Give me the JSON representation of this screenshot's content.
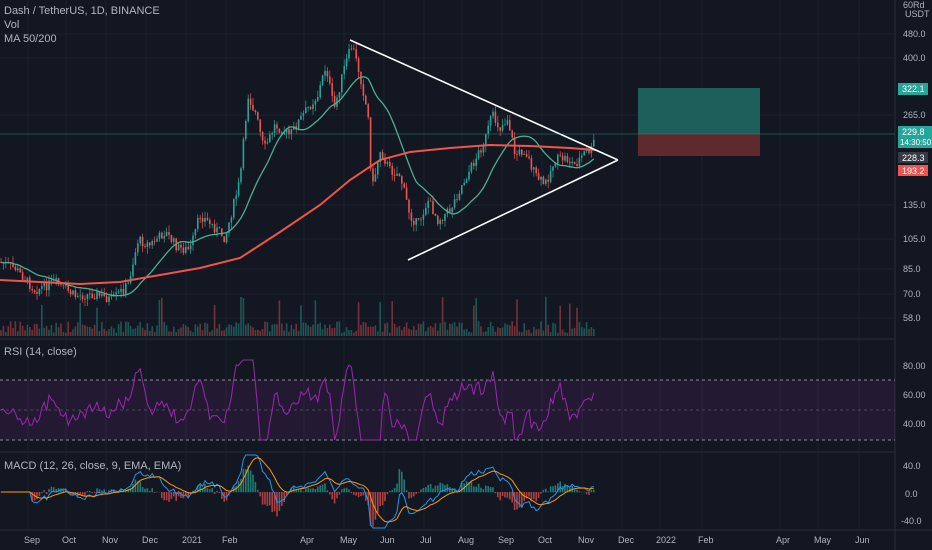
{
  "header": {
    "symbol_line": "Dash / TetherUS, 1D, BINANCE",
    "vol_label": "Vol",
    "ma_label": "MA 50/200"
  },
  "price_axis": {
    "unit_top": "60Rd",
    "currency": "USDT",
    "ticks": [
      "480.0",
      "400.0",
      "322.1",
      "265.0",
      "229.8",
      "14:30:50",
      "228.3",
      "193.2",
      "135.0",
      "105.0",
      "85.0",
      "70.0",
      "58.0"
    ]
  },
  "time_axis": {
    "ticks": [
      "Sep",
      "Oct",
      "Nov",
      "Dec",
      "2021",
      "Feb",
      "Apr",
      "May",
      "Jun",
      "Jul",
      "Aug",
      "Sep",
      "Oct",
      "Nov",
      "Dec",
      "2022",
      "Feb",
      "Apr",
      "May",
      "Jun"
    ]
  },
  "rsi": {
    "label": "RSI (14, close)",
    "ticks": [
      "80.00",
      "60.00",
      "40.00"
    ]
  },
  "macd": {
    "label": "MACD (12, 26, close, 9, EMA, EMA)",
    "ticks": [
      "40.0",
      "0.0",
      "-40.0"
    ]
  },
  "colors": {
    "background": "#131722",
    "up": "#26a69a",
    "down": "#ef5350",
    "ma50": "#4caf8f",
    "ma200": "#f0544a",
    "rsi": "#9c27b0",
    "macd": "#2196f3",
    "signal": "#ff9800",
    "tp_zone": "#1f5f5b",
    "sl_zone": "#5e2a2e"
  },
  "chart_data": [
    {
      "type": "line",
      "panel": "price",
      "x": [
        "Sep",
        "Oct",
        "Nov",
        "Dec",
        "2021",
        "Feb",
        "Apr",
        "May",
        "Jun",
        "Jul",
        "Aug",
        "Sep",
        "Oct",
        "Nov"
      ],
      "series": [
        {
          "name": "",
          "values": [
            95,
            78,
            72,
            95,
            112,
            250,
            320,
            460,
            160,
            115,
            165,
            270,
            180,
            230
          ]
        }
      ]
    },
    {
      "type": "line",
      "panel": "rsi",
      "series": [
        {
          "name": "",
          "values": [
            55,
            50,
            48,
            62,
            58,
            78,
            65,
            72,
            36,
            42,
            60,
            70,
            45,
            68
          ]
        }
      ],
      "ylim": [
        20,
        100
      ]
    },
    {
      "type": "line",
      "panel": "macd",
      "series": [
        {
          "name": "",
          "values": [
            0,
            -5,
            -3,
            4,
            3,
            20,
            12,
            30,
            -35,
            -10,
            10,
            18,
            -5,
            3
          ]
        },
        {
          "name": "",
          "values": [
            1,
            -3,
            -4,
            2,
            4,
            15,
            14,
            25,
            -25,
            -15,
            5,
            15,
            0,
            2
          ]
        }
      ],
      "ylim": [
        -45,
        50
      ]
    }
  ]
}
